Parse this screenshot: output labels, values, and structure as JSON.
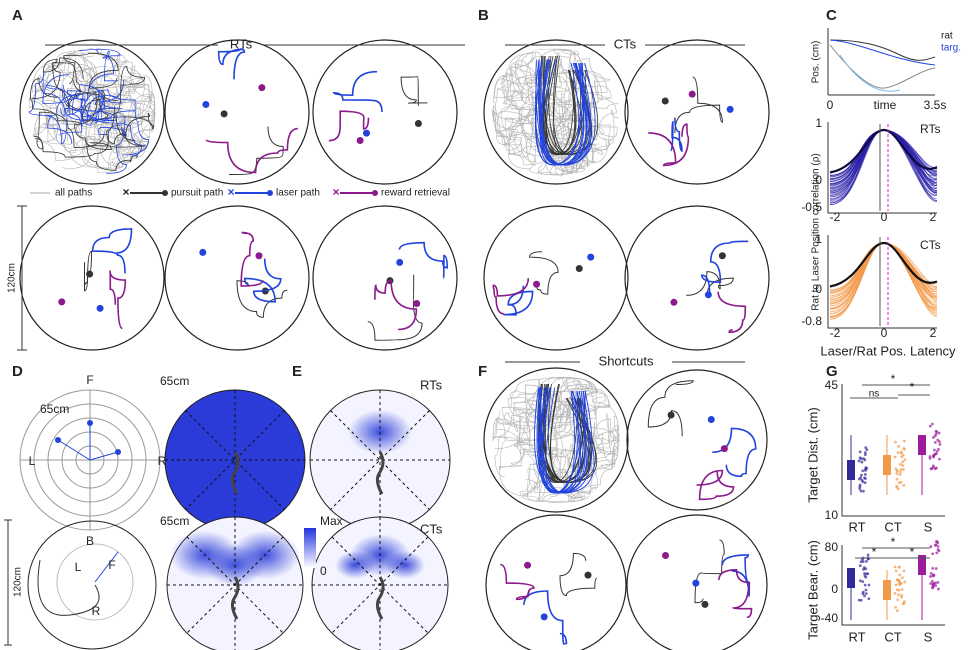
{
  "panels": {
    "A": {
      "label": "A",
      "title": "RTs",
      "legend": [
        "all paths",
        "pursuit path",
        "laser path",
        "reward retrieval"
      ],
      "scale": "120cm"
    },
    "B": {
      "label": "B",
      "title": "CTs"
    },
    "C": {
      "label": "C",
      "top": {
        "ylabel": "Pos. (cm)",
        "xlabel": "time",
        "xticks": [
          "0",
          "3.5s"
        ],
        "legend": [
          "rat",
          "targ."
        ]
      },
      "ylabel": "Rat to Laser Position correlation (ρ)",
      "rt": {
        "title": "RTs",
        "yticks": [
          "1",
          "0",
          "-0.5"
        ],
        "xticks": [
          "-2",
          "0",
          "2"
        ]
      },
      "ct": {
        "title": "CTs",
        "yticks": [
          "1",
          "0",
          "-0.8"
        ],
        "xticks": [
          "-2",
          "0",
          "2"
        ]
      },
      "xlabel": "Laser/Rat Pos. Latency"
    },
    "D": {
      "label": "D",
      "radius": "65cm",
      "dirs": [
        "F",
        "L",
        "R",
        "B"
      ],
      "scale": "120cm"
    },
    "E": {
      "label": "E",
      "rt": "RTs",
      "ct": "CTs",
      "colorbar": [
        "Max",
        "0"
      ]
    },
    "F": {
      "label": "F",
      "title": "Shortcuts"
    },
    "G": {
      "label": "G",
      "top": {
        "ylabel": "Target Dist. (cm)",
        "yticks": [
          "45",
          "10"
        ],
        "sig": [
          "ns",
          "*",
          "*"
        ]
      },
      "bottom": {
        "ylabel": "Target Bear. (cm)",
        "yticks": [
          "80",
          "0",
          "-40"
        ],
        "sig": [
          "*",
          "*",
          "*"
        ]
      },
      "categories": [
        "RT",
        "CT",
        "S"
      ]
    }
  }
}
